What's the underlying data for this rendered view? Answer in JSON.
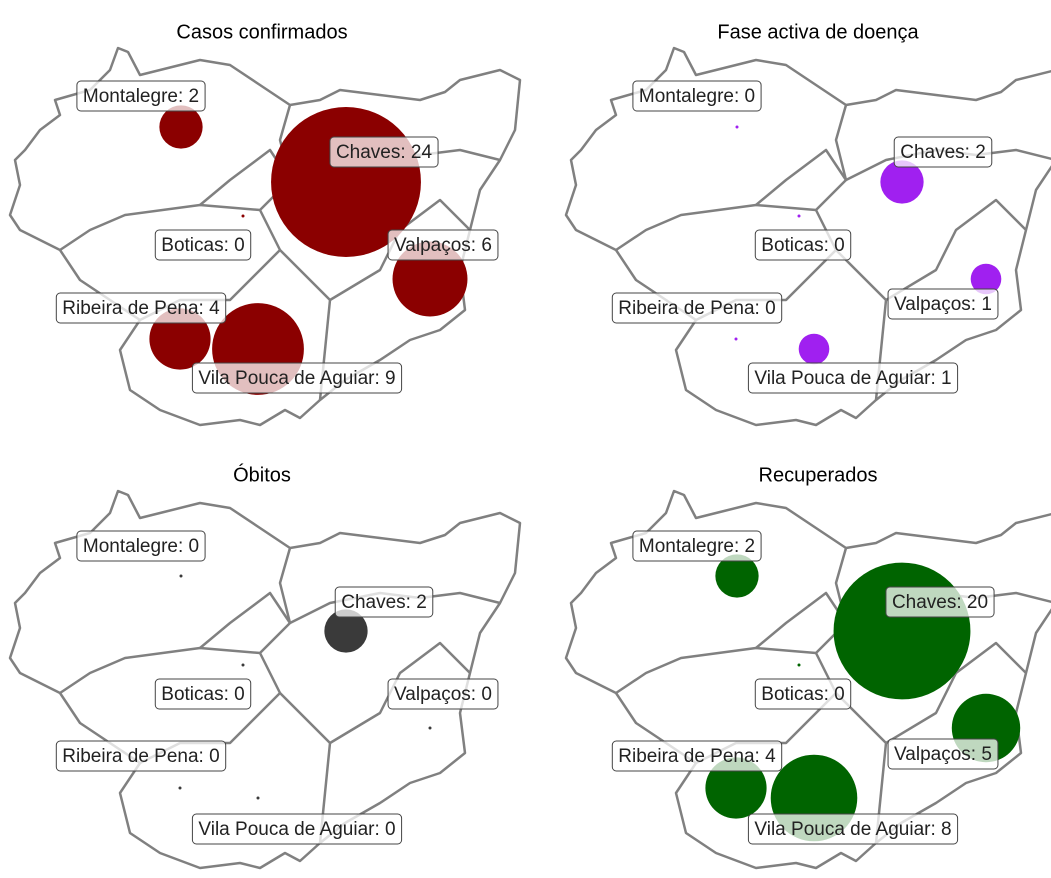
{
  "panels": [
    {
      "title": "Casos confirmados",
      "color": "#8b0000",
      "regions": [
        {
          "label": "Montalegre: 2",
          "value": 2
        },
        {
          "label": "Chaves: 24",
          "value": 24
        },
        {
          "label": "Boticas: 0",
          "value": 0
        },
        {
          "label": "Valpaços: 6",
          "value": 6
        },
        {
          "label": "Ribeira de Pena: 4",
          "value": 4
        },
        {
          "label": "Vila Pouca de Aguiar: 9",
          "value": 9
        }
      ]
    },
    {
      "title": "Fase activa de doença",
      "color": "#a020f0",
      "regions": [
        {
          "label": "Montalegre: 0",
          "value": 0
        },
        {
          "label": "Chaves: 2",
          "value": 2
        },
        {
          "label": "Boticas: 0",
          "value": 0
        },
        {
          "label": "Valpaços: 1",
          "value": 1
        },
        {
          "label": "Ribeira de Pena: 0",
          "value": 0
        },
        {
          "label": "Vila Pouca de Aguiar: 1",
          "value": 1
        }
      ]
    },
    {
      "title": "Óbitos",
      "color": "#3a3a3a",
      "regions": [
        {
          "label": "Montalegre: 0",
          "value": 0
        },
        {
          "label": "Chaves: 2",
          "value": 2
        },
        {
          "label": "Boticas: 0",
          "value": 0
        },
        {
          "label": "Valpaços: 0",
          "value": 0
        },
        {
          "label": "Ribeira de Pena: 0",
          "value": 0
        },
        {
          "label": "Vila Pouca de Aguiar: 0",
          "value": 0
        }
      ]
    },
    {
      "title": "Recuperados",
      "color": "#006400",
      "regions": [
        {
          "label": "Montalegre: 2",
          "value": 2
        },
        {
          "label": "Chaves: 20",
          "value": 20
        },
        {
          "label": "Boticas: 0",
          "value": 0
        },
        {
          "label": "Valpaços: 5",
          "value": 5
        },
        {
          "label": "Ribeira de Pena: 4",
          "value": 4
        },
        {
          "label": "Vila Pouca de Aguiar: 8",
          "value": 8
        }
      ]
    }
  ]
}
